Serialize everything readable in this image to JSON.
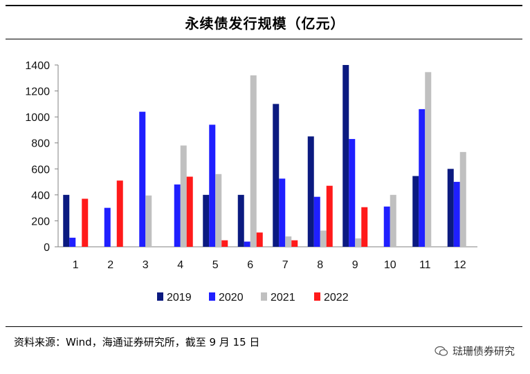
{
  "title": "永续债发行规模（亿元）",
  "source": "资料来源：Wind，海通证券研究所，截至 9 月 15 日",
  "watermark": "琺珊债券研究",
  "watermark_icon": "wechat-icon",
  "chart_data": {
    "type": "bar",
    "title": "永续债发行规模（亿元）",
    "categories": [
      "1",
      "2",
      "3",
      "4",
      "5",
      "6",
      "7",
      "8",
      "9",
      "10",
      "11",
      "12"
    ],
    "series": [
      {
        "name": "2019",
        "color": "#0b1a80",
        "values": [
          400,
          0,
          0,
          0,
          400,
          400,
          1100,
          850,
          1400,
          0,
          545,
          600
        ]
      },
      {
        "name": "2020",
        "color": "#1f1fff",
        "values": [
          70,
          300,
          1040,
          480,
          940,
          40,
          525,
          385,
          830,
          310,
          1060,
          500
        ]
      },
      {
        "name": "2021",
        "color": "#c0c0c0",
        "values": [
          0,
          0,
          395,
          780,
          560,
          1320,
          80,
          125,
          65,
          400,
          1345,
          730
        ]
      },
      {
        "name": "2022",
        "color": "#ff1a1a",
        "values": [
          370,
          510,
          0,
          540,
          50,
          110,
          50,
          470,
          305,
          0,
          0,
          0
        ]
      }
    ],
    "yticks": [
      0,
      200,
      400,
      600,
      800,
      1000,
      1200,
      1400
    ],
    "ylim": [
      0,
      1400
    ],
    "xlabel": "",
    "ylabel": "",
    "grid": false,
    "legend": "bottom"
  }
}
